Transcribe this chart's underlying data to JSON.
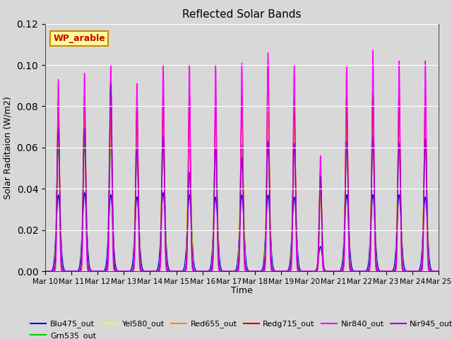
{
  "title": "Reflected Solar Bands",
  "xlabel": "Time",
  "ylabel": "Solar Raditaion (W/m2)",
  "annotation": "WP_arable",
  "annotation_color": "#cc0000",
  "annotation_bg": "#ffff99",
  "annotation_border": "#cc8800",
  "ylim": [
    0,
    0.12
  ],
  "n_days": 15,
  "fig_bg": "#d8d8d8",
  "plot_bg": "#d8d8d8",
  "tick_labels": [
    "Mar 10",
    "Mar 11",
    "Mar 12",
    "Mar 13",
    "Mar 14",
    "Mar 15",
    "Mar 16",
    "Mar 17",
    "Mar 18",
    "Mar 19",
    "Mar 20",
    "Mar 21",
    "Mar 22",
    "Mar 23",
    "Mar 24",
    "Mar 25"
  ],
  "series": [
    {
      "name": "Blu475_out",
      "color": "#0000ff",
      "lw": 1.0,
      "peaks": [
        0.037,
        0.038,
        0.037,
        0.036,
        0.038,
        0.037,
        0.036,
        0.037,
        0.037,
        0.036,
        0.012,
        0.037,
        0.037,
        0.037,
        0.036
      ],
      "widths": [
        0.08,
        0.08,
        0.08,
        0.08,
        0.08,
        0.08,
        0.08,
        0.08,
        0.08,
        0.08,
        0.07,
        0.08,
        0.08,
        0.08,
        0.08
      ]
    },
    {
      "name": "Grn535_out",
      "color": "#00cc00",
      "lw": 1.0,
      "peaks": [
        0.06,
        0.062,
        0.061,
        0.061,
        0.062,
        0.061,
        0.06,
        0.061,
        0.062,
        0.061,
        0.04,
        0.062,
        0.063,
        0.063,
        0.062
      ],
      "widths": [
        0.06,
        0.06,
        0.06,
        0.06,
        0.06,
        0.06,
        0.06,
        0.06,
        0.06,
        0.06,
        0.05,
        0.06,
        0.06,
        0.06,
        0.06
      ]
    },
    {
      "name": "Yel580_out",
      "color": "#ffff00",
      "lw": 1.0,
      "peaks": [
        0.072,
        0.075,
        0.073,
        0.072,
        0.075,
        0.073,
        0.073,
        0.075,
        0.075,
        0.073,
        0.048,
        0.074,
        0.075,
        0.075,
        0.074
      ],
      "widths": [
        0.055,
        0.055,
        0.055,
        0.055,
        0.055,
        0.055,
        0.055,
        0.055,
        0.055,
        0.055,
        0.05,
        0.055,
        0.055,
        0.055,
        0.055
      ]
    },
    {
      "name": "Red655_out",
      "color": "#ff8800",
      "lw": 1.0,
      "peaks": [
        0.073,
        0.076,
        0.074,
        0.073,
        0.076,
        0.074,
        0.073,
        0.076,
        0.077,
        0.074,
        0.048,
        0.075,
        0.077,
        0.077,
        0.074
      ],
      "widths": [
        0.052,
        0.052,
        0.052,
        0.052,
        0.052,
        0.052,
        0.052,
        0.052,
        0.052,
        0.052,
        0.048,
        0.052,
        0.052,
        0.052,
        0.052
      ]
    },
    {
      "name": "Redg715_out",
      "color": "#cc0000",
      "lw": 1.0,
      "peaks": [
        0.083,
        0.086,
        0.09,
        0.084,
        0.086,
        0.085,
        0.083,
        0.085,
        0.1,
        0.084,
        0.05,
        0.084,
        0.086,
        0.087,
        0.085
      ],
      "widths": [
        0.045,
        0.045,
        0.045,
        0.045,
        0.045,
        0.045,
        0.045,
        0.045,
        0.045,
        0.045,
        0.04,
        0.045,
        0.045,
        0.045,
        0.045
      ]
    },
    {
      "name": "Nir840_out",
      "color": "#ff00ff",
      "lw": 1.0,
      "peaks": [
        0.093,
        0.096,
        0.1,
        0.091,
        0.1,
        0.1,
        0.1,
        0.101,
        0.106,
        0.1,
        0.056,
        0.099,
        0.107,
        0.102,
        0.102
      ],
      "widths": [
        0.038,
        0.038,
        0.038,
        0.038,
        0.038,
        0.038,
        0.038,
        0.038,
        0.038,
        0.038,
        0.035,
        0.038,
        0.038,
        0.038,
        0.038
      ]
    },
    {
      "name": "Nir945_out",
      "color": "#9900cc",
      "lw": 1.0,
      "peaks": [
        0.069,
        0.069,
        0.091,
        0.06,
        0.065,
        0.048,
        0.06,
        0.055,
        0.063,
        0.062,
        0.046,
        0.063,
        0.065,
        0.062,
        0.064
      ],
      "widths": [
        0.055,
        0.055,
        0.055,
        0.055,
        0.055,
        0.055,
        0.055,
        0.055,
        0.055,
        0.055,
        0.05,
        0.055,
        0.055,
        0.055,
        0.055
      ]
    }
  ]
}
